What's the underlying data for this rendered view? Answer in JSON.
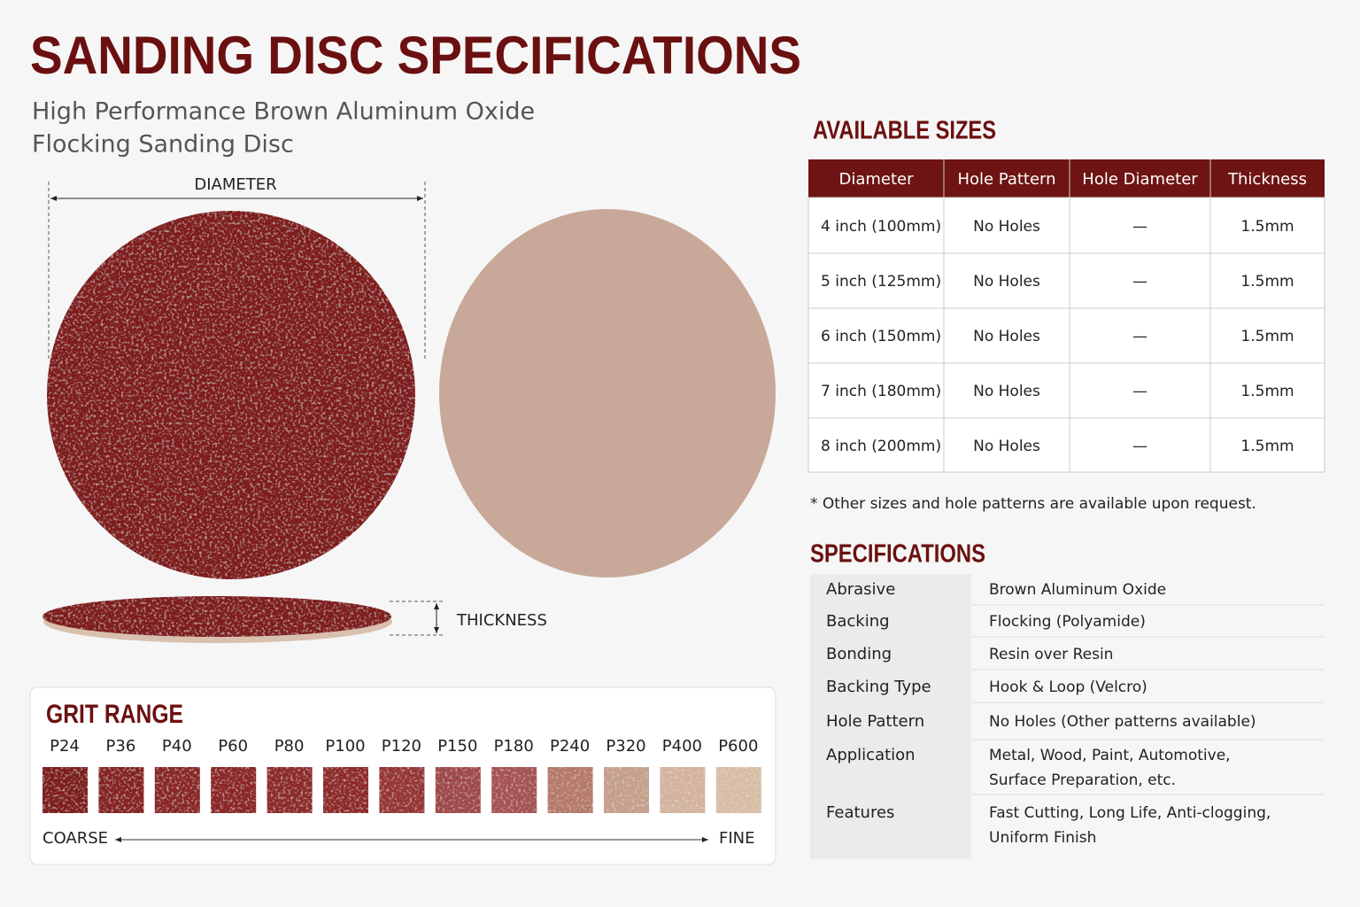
{
  "header": {
    "title": "SANDING DISC SPECIFICATIONS",
    "subtitle": [
      "High Performance Brown Aluminum Oxide",
      "Flocking Sanding Disc"
    ]
  },
  "diagram": {
    "diameter_label": "DIAMETER",
    "thickness_label": "THICKNESS"
  },
  "grit": {
    "title": "GRIT RANGE",
    "grades": [
      {
        "label": "P24",
        "color": "#7e1f1f"
      },
      {
        "label": "P36",
        "color": "#862424"
      },
      {
        "label": "P40",
        "color": "#8a2626"
      },
      {
        "label": "P60",
        "color": "#8c2727"
      },
      {
        "label": "P80",
        "color": "#8e2929"
      },
      {
        "label": "P100",
        "color": "#8f2a2a"
      },
      {
        "label": "P120",
        "color": "#963636"
      },
      {
        "label": "P150",
        "color": "#9e4848"
      },
      {
        "label": "P180",
        "color": "#a55252"
      },
      {
        "label": "P240",
        "color": "#b57a6a"
      },
      {
        "label": "P320",
        "color": "#c4a08c"
      },
      {
        "label": "P400",
        "color": "#d2b39f"
      },
      {
        "label": "P600",
        "color": "#d8bda6"
      }
    ],
    "coarse": "COARSE",
    "fine": "FINE"
  },
  "sizes": {
    "title": "AVAILABLE SIZES",
    "headers": [
      "Diameter",
      "Hole Pattern",
      "Hole Diameter",
      "Thickness"
    ],
    "rows": [
      [
        "4 inch (100mm)",
        "No Holes",
        "—",
        "1.5mm"
      ],
      [
        "5 inch (125mm)",
        "No Holes",
        "—",
        "1.5mm"
      ],
      [
        "6 inch (150mm)",
        "No Holes",
        "—",
        "1.5mm"
      ],
      [
        "7 inch (180mm)",
        "No Holes",
        "—",
        "1.5mm"
      ],
      [
        "8 inch (200mm)",
        "No Holes",
        "—",
        "1.5mm"
      ]
    ],
    "note": "* Other sizes and hole patterns are available upon request."
  },
  "specs": {
    "title": "SPECIFICATIONS",
    "rows": [
      {
        "label": "Abrasive",
        "value": [
          "Brown Aluminum Oxide"
        ]
      },
      {
        "label": "Backing",
        "value": [
          "Flocking (Polyamide)"
        ]
      },
      {
        "label": "Bonding",
        "value": [
          "Resin over Resin"
        ]
      },
      {
        "label": "Backing Type",
        "value": [
          "Hook & Loop (Velcro)"
        ]
      },
      {
        "label": "Hole Pattern",
        "value": [
          "No Holes (Other patterns available)"
        ]
      },
      {
        "label": "Application",
        "value": [
          "Metal, Wood, Paint, Automotive,",
          "Surface Preparation, etc."
        ]
      },
      {
        "label": "Features",
        "value": [
          "Fast Cutting, Long Life, Anti-clogging,",
          "Uniform Finish"
        ]
      }
    ]
  }
}
